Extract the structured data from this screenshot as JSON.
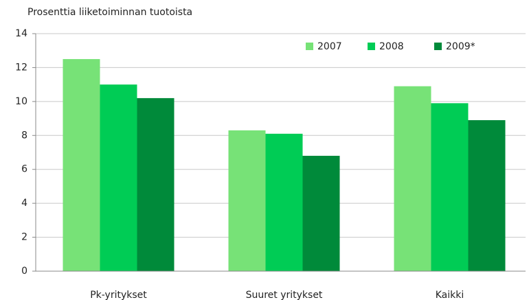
{
  "chart_data": {
    "type": "bar",
    "y_axis_label": "Prosenttia liiketoiminnan tuotoista",
    "categories": [
      "Pk-yritykset",
      "Suuret yritykset",
      "Kaikki"
    ],
    "series": [
      {
        "name": "2007",
        "color": "#77e277",
        "values": [
          12.5,
          8.3,
          10.9
        ]
      },
      {
        "name": "2008",
        "color": "#00cc55",
        "values": [
          11.0,
          8.1,
          9.9
        ]
      },
      {
        "name": "2009*",
        "color": "#008a3a",
        "values": [
          10.2,
          6.8,
          8.9
        ]
      }
    ],
    "ylim": [
      0,
      14
    ],
    "yticks": [
      0,
      2,
      4,
      6,
      8,
      10,
      12,
      14
    ],
    "grid": true,
    "legend": "top-right"
  }
}
